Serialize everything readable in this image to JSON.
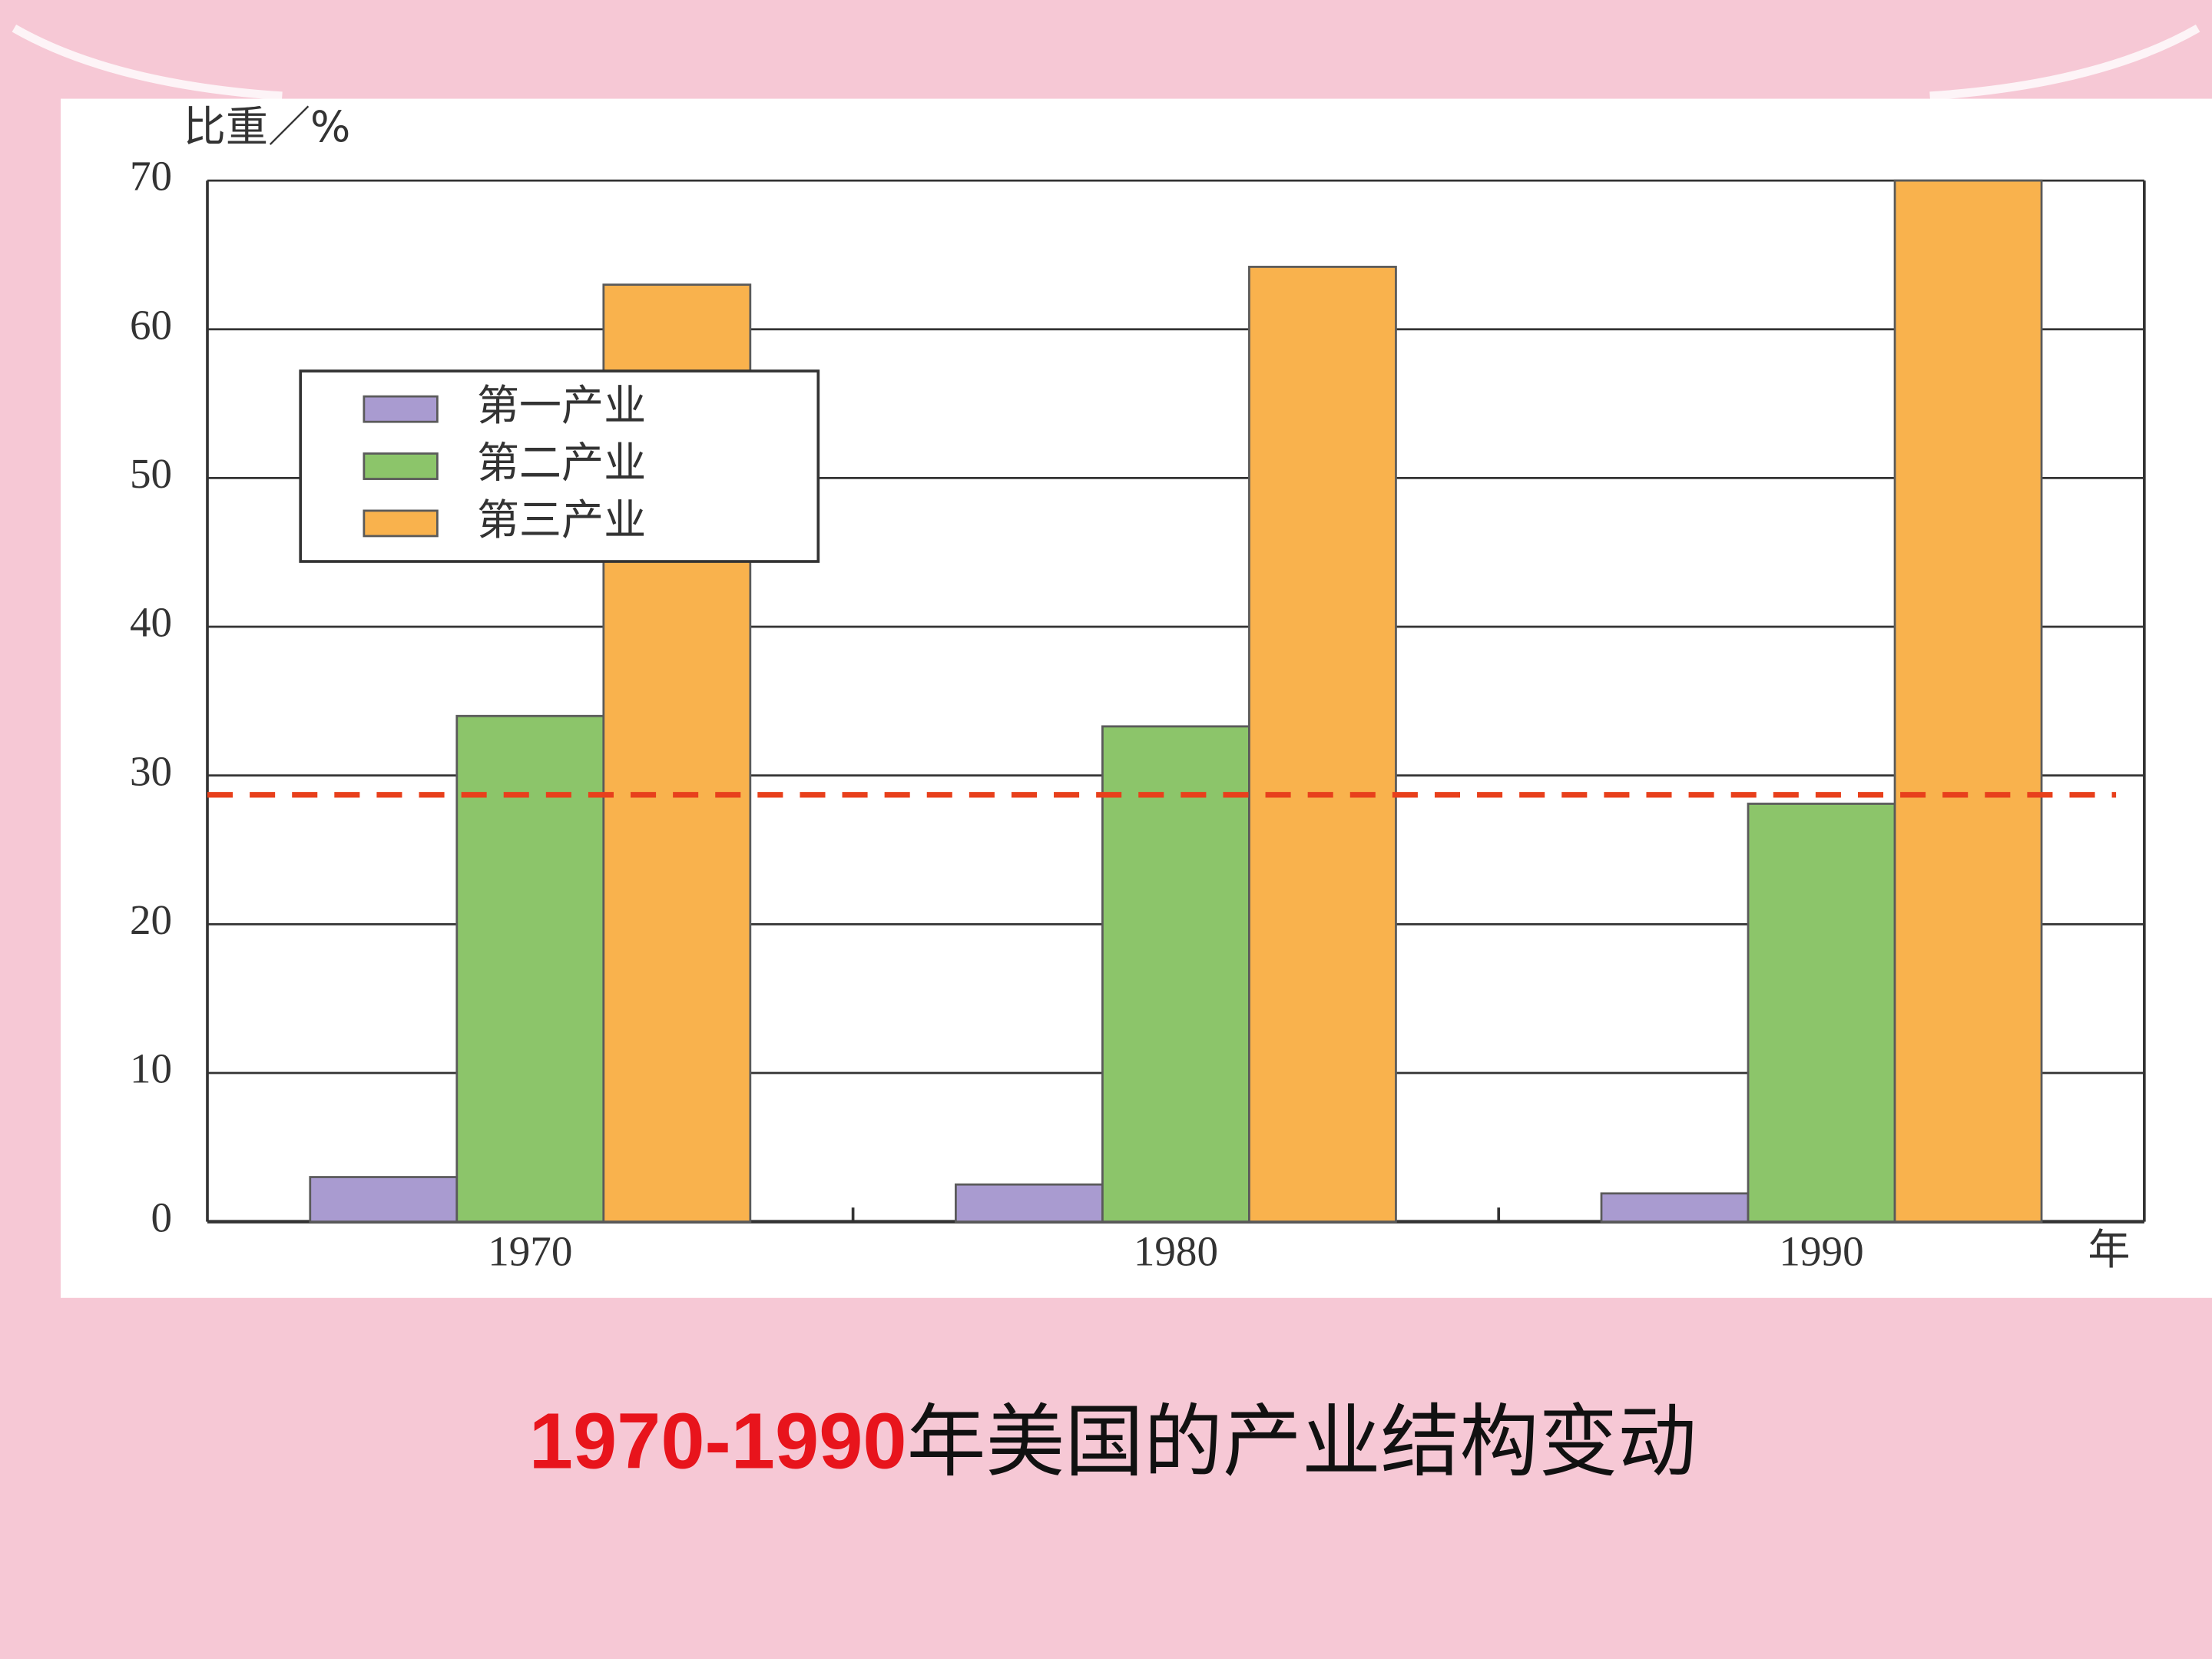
{
  "chart_data": {
    "type": "bar",
    "y_label": "比重／%",
    "x_label": "年",
    "categories": [
      "1970",
      "1980",
      "1990"
    ],
    "series": [
      {
        "name": "第一产业",
        "color": "#a99bd0",
        "values": [
          3,
          2.5,
          1.9
        ]
      },
      {
        "name": "第二产业",
        "color": "#8cc56a",
        "values": [
          34,
          33.3,
          28.1
        ]
      },
      {
        "name": "第三产业",
        "color": "#f9b24d",
        "values": [
          63,
          64.2,
          70
        ]
      }
    ],
    "ylim": [
      0,
      70
    ],
    "yticks": [
      0,
      10,
      20,
      30,
      40,
      50,
      60,
      70
    ],
    "grid": true,
    "legend": "upper left",
    "reference_line": {
      "value": 28.7,
      "color": "#e8401c"
    },
    "caption": [
      "1970-1990",
      "年美国的产业结构变动"
    ]
  }
}
